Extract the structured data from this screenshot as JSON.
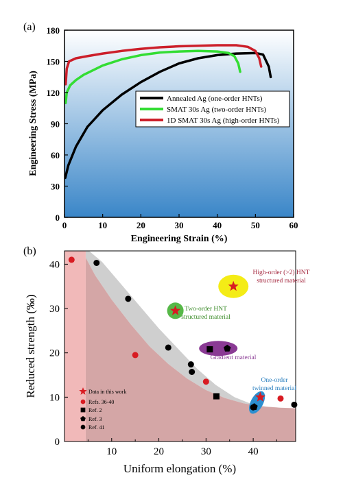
{
  "colors": {
    "black": "#000000",
    "green": "#33dd33",
    "red": "#cc1f2a",
    "gradient_top": "#ffffff",
    "gradient_bottom": "#3a86c8",
    "band_grey": "#cfcfcf",
    "band_red": "#d4a6a6",
    "band_pink": "#f1b9b9",
    "marker_red": "#d81b22",
    "ellipse_yellow": "#f4ec16",
    "ellipse_green": "#56b848",
    "ellipse_purple": "#8a3a94",
    "ellipse_blue": "#2c8fd0",
    "text_red": "#a3243b",
    "text_green": "#3c8c2a",
    "text_purple": "#8a3a94",
    "text_blue": "#2a7fbf"
  },
  "chart_data": [
    {
      "panel_label": "(a)",
      "type": "line",
      "xlabel": "Engineering Strain (%)",
      "ylabel": "Engineering Stress (MPa)",
      "xlim": [
        0,
        60
      ],
      "ylim": [
        0,
        180
      ],
      "xticks": [
        "0",
        "10",
        "20",
        "30",
        "40",
        "50",
        "60"
      ],
      "yticks": [
        "0",
        "30",
        "60",
        "90",
        "120",
        "150",
        "180"
      ],
      "legend_position": "center-right",
      "series": [
        {
          "name": "Annealed Ag (one-order HNTs)",
          "color": "black",
          "points": [
            [
              0.2,
              38
            ],
            [
              1,
              50
            ],
            [
              3,
              68
            ],
            [
              6,
              87
            ],
            [
              10,
              103
            ],
            [
              15,
              118
            ],
            [
              20,
              130
            ],
            [
              25,
              140
            ],
            [
              30,
              148
            ],
            [
              35,
              153
            ],
            [
              40,
              156
            ],
            [
              45,
              157.5
            ],
            [
              50,
              158
            ],
            [
              52,
              156.5
            ],
            [
              53.5,
              145
            ],
            [
              54,
              135
            ]
          ]
        },
        {
          "name": "SMAT 30s Ag (two-order HNTs)",
          "color": "green",
          "points": [
            [
              0.3,
              110
            ],
            [
              0.6,
              120
            ],
            [
              1.5,
              127
            ],
            [
              3,
              132
            ],
            [
              5,
              137
            ],
            [
              10,
              146
            ],
            [
              15,
              152
            ],
            [
              20,
              156
            ],
            [
              25,
              158.5
            ],
            [
              30,
              159.5
            ],
            [
              35,
              160
            ],
            [
              40,
              159.5
            ],
            [
              43,
              158
            ],
            [
              44.5,
              155
            ],
            [
              45.5,
              148
            ],
            [
              46,
              140
            ]
          ]
        },
        {
          "name": "1D SMAT 30s Ag (high-order HNTs)",
          "color": "red",
          "points": [
            [
              0.3,
              128
            ],
            [
              0.6,
              143
            ],
            [
              1.2,
              150
            ],
            [
              3,
              153
            ],
            [
              6,
              155
            ],
            [
              10,
              157.5
            ],
            [
              15,
              160
            ],
            [
              20,
              162
            ],
            [
              25,
              163.5
            ],
            [
              30,
              164.5
            ],
            [
              35,
              165
            ],
            [
              40,
              165.5
            ],
            [
              45,
              165.5
            ],
            [
              48,
              164
            ],
            [
              50,
              160
            ],
            [
              51,
              153
            ],
            [
              51.5,
              145
            ]
          ]
        }
      ]
    },
    {
      "panel_label": "(b)",
      "type": "scatter",
      "xlabel": "Uniform elongation (%)",
      "ylabel": "Reduced strength (‰)",
      "xlim": [
        0,
        49
      ],
      "ylim": [
        0,
        43
      ],
      "xticks": [
        "10",
        "20",
        "30",
        "40"
      ],
      "yticks": [
        "0",
        "10",
        "20",
        "30",
        "40"
      ],
      "legend_position": "bottom-left",
      "series": [
        {
          "name": "Data in this work",
          "marker": "star",
          "color": "marker_red",
          "points": [
            [
              23.5,
              29.5
            ],
            [
              35.8,
              35.0
            ],
            [
              41.5,
              10.0
            ]
          ]
        },
        {
          "name": "Refs. 36-40",
          "marker": "circle",
          "color": "marker_red",
          "points": [
            [
              1.5,
              41.0
            ],
            [
              15,
              19.5
            ],
            [
              30,
              13.5
            ],
            [
              45.8,
              9.7
            ]
          ]
        },
        {
          "name": "Ref. 2",
          "marker": "square",
          "color": "black",
          "points": [
            [
              30.8,
              20.8
            ],
            [
              32.2,
              10.2
            ]
          ]
        },
        {
          "name": "Ref. 3",
          "marker": "pentagon",
          "color": "black",
          "points": [
            [
              34.5,
              21.0
            ],
            [
              40.2,
              7.8
            ]
          ]
        },
        {
          "name": "Ref. 41",
          "marker": "circle",
          "color": "black",
          "points": [
            [
              6.8,
              40.3
            ],
            [
              13.5,
              32.2
            ],
            [
              22.0,
              21.2
            ],
            [
              26.8,
              17.4
            ],
            [
              27.0,
              15.7
            ],
            [
              40.0,
              7.7
            ],
            [
              48.7,
              8.3
            ]
          ]
        }
      ],
      "annotations": [
        {
          "text_lines": [
            "High-order (>2) HNT",
            "structured material"
          ],
          "color": "text_red"
        },
        {
          "text_lines": [
            "Two-order HNT",
            "structured material"
          ],
          "color": "text_green"
        },
        {
          "text_lines": [
            "Gradient material"
          ],
          "color": "text_purple"
        },
        {
          "text_lines": [
            "One-order",
            "twinned material"
          ],
          "color": "text_blue"
        }
      ]
    }
  ]
}
